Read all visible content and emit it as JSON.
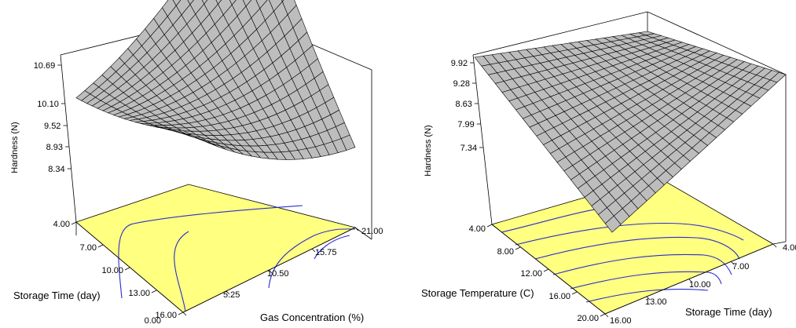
{
  "chart_data": [
    {
      "type": "surface3d",
      "zlabel": "Hardness (N)",
      "xlabel": "Gas Concentration (%)",
      "ylabel": "Storage Time (day)",
      "z_ticks": [
        "10.69",
        "10.10",
        "9.52",
        "8.93",
        "8.34"
      ],
      "x_ticks": [
        "0.00",
        "5.25",
        "10.50",
        "15.75",
        "21.00"
      ],
      "y_ticks": [
        "4.00",
        "7.00",
        "10.00",
        "13.00",
        "16.00"
      ],
      "xlim": [
        0,
        21
      ],
      "ylim": [
        4,
        16
      ],
      "zlim": [
        7.75,
        10.69
      ],
      "corner_values": {
        "x0_y16": 9.5,
        "x21_y16": 8.2,
        "x0_y4": 8.7,
        "x21_y4": 10.69
      },
      "colors": {
        "floor": "#ffff80",
        "surface": "#bdbdbd",
        "contours": "#2b2bd0"
      }
    },
    {
      "type": "surface3d",
      "zlabel": "Hardness (N)",
      "xlabel": "Storage Time (day)",
      "ylabel": "Storage Temperature (C)",
      "z_ticks": [
        "9.92",
        "9.28",
        "8.63",
        "7.99",
        "7.34"
      ],
      "x_ticks": [
        "4.00",
        "7.00",
        "10.00",
        "13.00",
        "16.00"
      ],
      "y_ticks": [
        "4.00",
        "8.00",
        "12.00",
        "16.00",
        "20.00"
      ],
      "xlim": [
        4,
        16
      ],
      "ylim": [
        4,
        20
      ],
      "zlim": [
        6.7,
        9.92
      ],
      "corner_values": {
        "x16_y4": 9.92,
        "x16_y20": 9.7,
        "x4_y4": 9.4,
        "x4_y20": 6.7
      },
      "colors": {
        "floor": "#ffff80",
        "surface": "#bdbdbd",
        "contours": "#2b2bd0"
      }
    }
  ]
}
